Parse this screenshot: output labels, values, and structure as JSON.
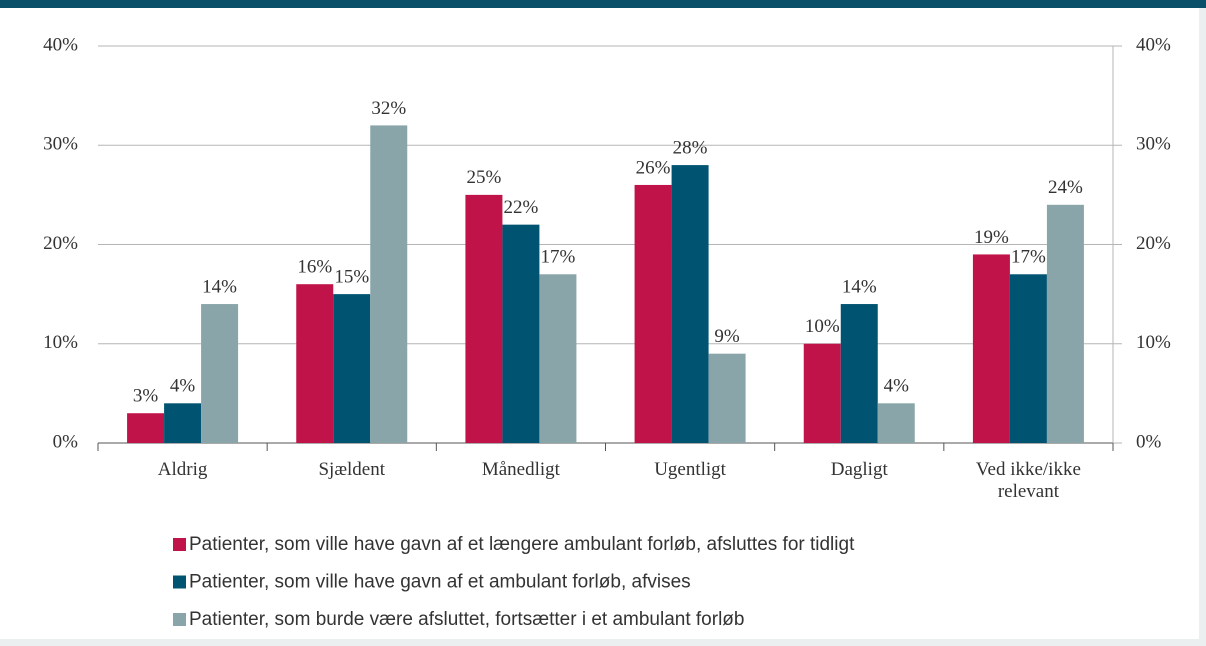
{
  "chart_data": {
    "type": "bar",
    "categories": [
      "Aldrig",
      "Sjældent",
      "Månedligt",
      "Ugentligt",
      "Dagligt",
      "Ved ikke/ikke relevant"
    ],
    "series": [
      {
        "name": "Patienter, som ville have gavn af et længere ambulant forløb, afsluttes for tidligt",
        "color": "#c0134a",
        "values": [
          3,
          16,
          25,
          26,
          10,
          19
        ],
        "value_labels": [
          "3%",
          "16%",
          "25%",
          "26%",
          "10%",
          "19%"
        ]
      },
      {
        "name": "Patienter, som ville have gavn af et ambulant forløb, afvises",
        "color": "#005471",
        "values": [
          4,
          15,
          22,
          28,
          14,
          17
        ],
        "value_labels": [
          "4%",
          "15%",
          "22%",
          "28%",
          "14%",
          "17%"
        ]
      },
      {
        "name": "Patienter, som burde være afsluttet, fortsætter i et ambulant forløb",
        "color": "#8aa5aa",
        "values": [
          14,
          32,
          17,
          9,
          4,
          24
        ],
        "value_labels": [
          "14%",
          "32%",
          "17%",
          "9%",
          "4%",
          "24%"
        ]
      }
    ],
    "ylim": [
      0,
      40
    ],
    "yticks": [
      {
        "value": 0,
        "label": "0%"
      },
      {
        "value": 10,
        "label": "10%"
      },
      {
        "value": 20,
        "label": "20%"
      },
      {
        "value": 30,
        "label": "30%"
      },
      {
        "value": 40,
        "label": "40%"
      }
    ],
    "grid": true
  }
}
